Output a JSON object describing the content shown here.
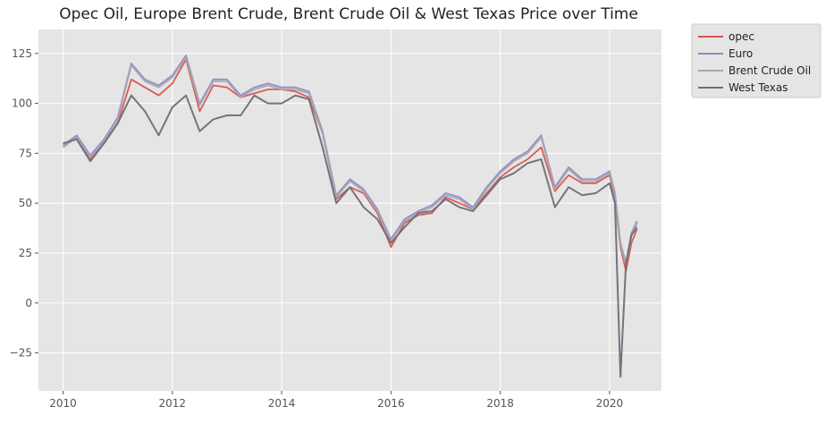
{
  "chart_data": {
    "type": "line",
    "title": "Opec Oil, Europe Brent Crude, Brent Crude Oil & West Texas Price over Time",
    "xlabel": "",
    "ylabel": "",
    "xlim": [
      2009.55,
      2020.95
    ],
    "ylim": [
      -44,
      137
    ],
    "x_ticks": [
      "2010",
      "2012",
      "2014",
      "2016",
      "2018",
      "2020"
    ],
    "y_ticks": [
      "−25",
      "0",
      "25",
      "50",
      "75",
      "100",
      "125"
    ],
    "grid": true,
    "legend_position": "outside-top-right",
    "x": [
      2010.0,
      2010.25,
      2010.5,
      2010.75,
      2011.0,
      2011.25,
      2011.5,
      2011.75,
      2012.0,
      2012.25,
      2012.5,
      2012.75,
      2013.0,
      2013.25,
      2013.5,
      2013.75,
      2014.0,
      2014.25,
      2014.5,
      2014.75,
      2015.0,
      2015.25,
      2015.5,
      2015.75,
      2016.0,
      2016.25,
      2016.5,
      2016.75,
      2017.0,
      2017.25,
      2017.5,
      2017.75,
      2018.0,
      2018.25,
      2018.5,
      2018.75,
      2019.0,
      2019.25,
      2019.5,
      2019.75,
      2020.0,
      2020.1,
      2020.2,
      2020.3,
      2020.4,
      2020.5
    ],
    "series": [
      {
        "name": "opec",
        "color": "#d9544d",
        "values": [
          78,
          83,
          72,
          80,
          90,
          112,
          108,
          104,
          110,
          122,
          96,
          109,
          108,
          103,
          105,
          107,
          107,
          106,
          103,
          85,
          52,
          58,
          55,
          45,
          28,
          40,
          44,
          45,
          53,
          50,
          47,
          55,
          63,
          68,
          72,
          78,
          56,
          64,
          60,
          60,
          64,
          52,
          28,
          16,
          30,
          37
        ]
      },
      {
        "name": "Euro",
        "color": "#8e89c9",
        "values": [
          79,
          84,
          74,
          82,
          93,
          120,
          112,
          109,
          114,
          124,
          100,
          112,
          112,
          104,
          108,
          110,
          108,
          108,
          106,
          86,
          54,
          62,
          57,
          47,
          32,
          42,
          46,
          49,
          55,
          53,
          48,
          58,
          66,
          72,
          76,
          84,
          58,
          68,
          62,
          62,
          66,
          55,
          30,
          20,
          35,
          41
        ]
      },
      {
        "name": "Brent Crude Oil",
        "color": "#a8a8b0",
        "values": [
          78,
          83,
          73,
          81,
          92,
          119,
          111,
          108,
          113,
          123,
          99,
          111,
          111,
          103,
          107,
          109,
          107,
          107,
          105,
          85,
          53,
          61,
          56,
          46,
          31,
          41,
          45,
          48,
          54,
          52,
          47,
          57,
          65,
          71,
          75,
          83,
          57,
          67,
          61,
          61,
          65,
          54,
          29,
          19,
          34,
          40
        ]
      },
      {
        "name": "West Texas",
        "color": "#6e6e78",
        "values": [
          80,
          82,
          71,
          80,
          90,
          104,
          96,
          84,
          98,
          104,
          86,
          92,
          94,
          94,
          104,
          100,
          100,
          104,
          102,
          78,
          50,
          58,
          48,
          42,
          30,
          38,
          45,
          46,
          52,
          48,
          46,
          54,
          62,
          65,
          70,
          72,
          48,
          58,
          54,
          55,
          60,
          50,
          -37,
          20,
          34,
          38
        ]
      }
    ]
  }
}
